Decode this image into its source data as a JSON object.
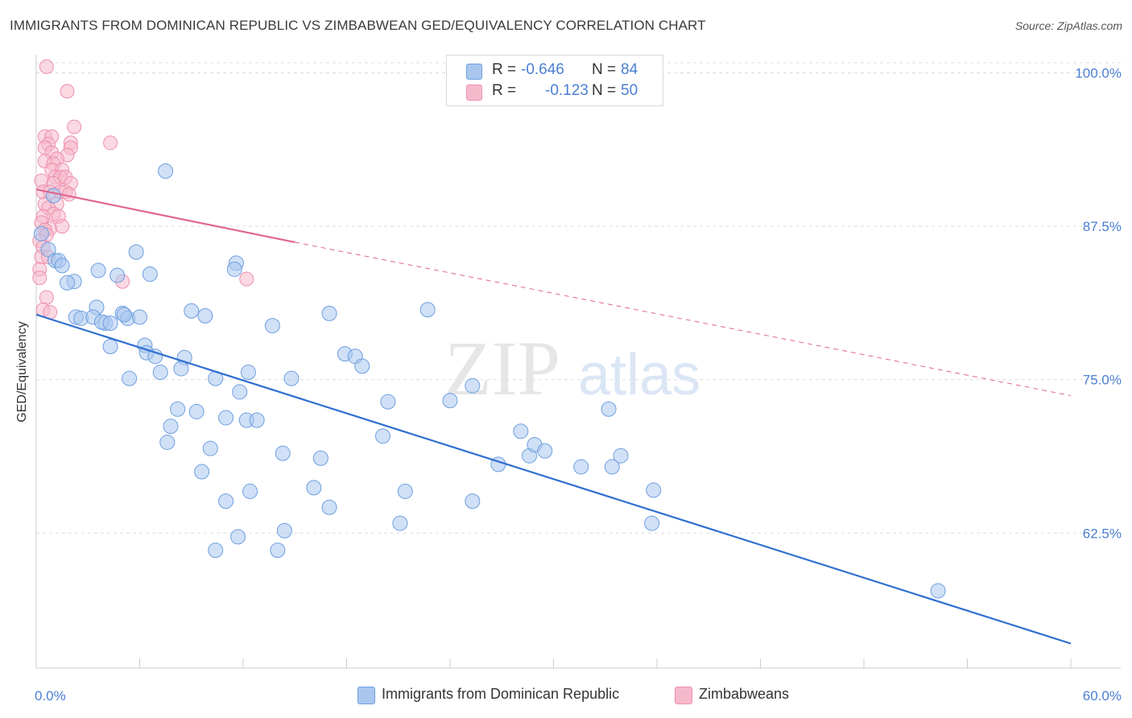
{
  "header": {
    "title": "IMMIGRANTS FROM DOMINICAN REPUBLIC VS ZIMBABWEAN GED/EQUIVALENCY CORRELATION CHART",
    "source": "Source: ZipAtlas.com"
  },
  "watermark": {
    "zip": "ZIP",
    "atlas": "atlas"
  },
  "legend": {
    "rows": [
      {
        "r_label": "R =",
        "r_value": "-0.646",
        "n_label": "N =",
        "n_value": "84"
      },
      {
        "r_label": "R =",
        "r_value": "-0.123",
        "n_label": "N =",
        "n_value": "50"
      }
    ]
  },
  "bottom_legend": {
    "series1": "Immigrants from Dominican Republic",
    "series2": "Zimbabweans"
  },
  "colors": {
    "blue_fill": "#a9c7ee",
    "blue_stroke": "#6e9fe0",
    "blue_line": "#2f6fd0",
    "pink_fill": "#f6b9cc",
    "pink_stroke": "#ee8fae",
    "pink_line": "#e06690",
    "axis_label": "#4a7fd4",
    "grid": "#dddddd"
  },
  "chart_data": {
    "type": "scatter",
    "ylabel": "GED/Equivalency",
    "xlabel": "",
    "xlim": [
      0,
      60
    ],
    "ylim": [
      51.5,
      102
    ],
    "x_tick_labels": [
      "0.0%",
      "60.0%"
    ],
    "y_ticks": [
      62.5,
      75.0,
      87.5,
      100.0
    ],
    "y_tick_labels": [
      "62.5%",
      "75.0%",
      "87.5%",
      "100.0%"
    ],
    "grid": true,
    "series": [
      {
        "name": "Immigrants from Dominican Republic",
        "color": "#a9c7ee",
        "points": [
          [
            1.0,
            90.0
          ],
          [
            0.3,
            86.9
          ],
          [
            0.7,
            85.6
          ],
          [
            1.1,
            84.7
          ],
          [
            1.3,
            84.7
          ],
          [
            1.5,
            84.3
          ],
          [
            2.2,
            83.0
          ],
          [
            1.8,
            82.9
          ],
          [
            3.6,
            83.9
          ],
          [
            4.7,
            83.5
          ],
          [
            5.8,
            85.4
          ],
          [
            6.6,
            83.6
          ],
          [
            11.6,
            84.5
          ],
          [
            11.5,
            84.0
          ],
          [
            7.5,
            92.0
          ],
          [
            2.3,
            80.1
          ],
          [
            2.6,
            80.0
          ],
          [
            3.5,
            80.9
          ],
          [
            3.3,
            80.1
          ],
          [
            4.0,
            79.6
          ],
          [
            3.8,
            79.7
          ],
          [
            4.3,
            79.6
          ],
          [
            5.0,
            80.4
          ],
          [
            5.3,
            80.0
          ],
          [
            5.1,
            80.3
          ],
          [
            6.0,
            80.1
          ],
          [
            9.0,
            80.6
          ],
          [
            9.8,
            80.2
          ],
          [
            13.7,
            79.4
          ],
          [
            17.0,
            80.4
          ],
          [
            22.7,
            80.7
          ],
          [
            4.3,
            77.7
          ],
          [
            6.3,
            77.8
          ],
          [
            6.4,
            77.2
          ],
          [
            6.9,
            76.9
          ],
          [
            8.6,
            76.8
          ],
          [
            8.4,
            75.9
          ],
          [
            7.2,
            75.6
          ],
          [
            5.4,
            75.1
          ],
          [
            10.4,
            75.1
          ],
          [
            12.3,
            75.6
          ],
          [
            14.8,
            75.1
          ],
          [
            17.9,
            77.1
          ],
          [
            18.5,
            76.9
          ],
          [
            18.9,
            76.1
          ],
          [
            11.8,
            74.0
          ],
          [
            8.2,
            72.6
          ],
          [
            9.3,
            72.4
          ],
          [
            11.0,
            71.9
          ],
          [
            12.2,
            71.7
          ],
          [
            12.8,
            71.7
          ],
          [
            20.4,
            73.2
          ],
          [
            24.0,
            73.3
          ],
          [
            25.3,
            74.5
          ],
          [
            33.2,
            72.6
          ],
          [
            7.8,
            71.2
          ],
          [
            7.6,
            69.9
          ],
          [
            10.1,
            69.4
          ],
          [
            14.3,
            69.0
          ],
          [
            16.5,
            68.6
          ],
          [
            20.1,
            70.4
          ],
          [
            26.8,
            68.1
          ],
          [
            28.6,
            68.8
          ],
          [
            28.1,
            70.8
          ],
          [
            28.9,
            69.7
          ],
          [
            29.5,
            69.2
          ],
          [
            31.6,
            67.9
          ],
          [
            33.4,
            67.9
          ],
          [
            33.9,
            68.8
          ],
          [
            9.6,
            67.5
          ],
          [
            11.0,
            65.1
          ],
          [
            12.4,
            65.9
          ],
          [
            16.1,
            66.2
          ],
          [
            17.0,
            64.6
          ],
          [
            21.4,
            65.9
          ],
          [
            25.3,
            65.1
          ],
          [
            35.8,
            66.0
          ],
          [
            11.7,
            62.2
          ],
          [
            14.4,
            62.7
          ],
          [
            10.4,
            61.1
          ],
          [
            14.0,
            61.1
          ],
          [
            21.1,
            63.3
          ],
          [
            35.7,
            63.3
          ],
          [
            52.3,
            57.8
          ]
        ],
        "trend": {
          "x": [
            0,
            60
          ],
          "y": [
            80.3,
            53.5
          ]
        }
      },
      {
        "name": "Zimbabweans",
        "color": "#f6b9cc",
        "points": [
          [
            0.6,
            100.5
          ],
          [
            1.8,
            98.5
          ],
          [
            2.2,
            95.6
          ],
          [
            0.5,
            94.8
          ],
          [
            0.9,
            94.8
          ],
          [
            2.0,
            94.3
          ],
          [
            4.3,
            94.3
          ],
          [
            0.7,
            94.2
          ],
          [
            0.5,
            93.9
          ],
          [
            2.0,
            93.9
          ],
          [
            0.9,
            93.5
          ],
          [
            1.8,
            93.3
          ],
          [
            1.2,
            93.0
          ],
          [
            0.5,
            92.8
          ],
          [
            1.0,
            92.6
          ],
          [
            0.9,
            92.1
          ],
          [
            1.5,
            92.1
          ],
          [
            1.1,
            91.5
          ],
          [
            1.4,
            91.5
          ],
          [
            1.7,
            91.5
          ],
          [
            0.3,
            91.2
          ],
          [
            1.0,
            91.0
          ],
          [
            2.0,
            91.0
          ],
          [
            0.4,
            90.3
          ],
          [
            0.8,
            90.3
          ],
          [
            1.4,
            90.3
          ],
          [
            1.7,
            90.3
          ],
          [
            1.9,
            90.1
          ],
          [
            0.5,
            89.3
          ],
          [
            1.2,
            89.3
          ],
          [
            0.7,
            89.0
          ],
          [
            1.0,
            88.5
          ],
          [
            0.4,
            88.3
          ],
          [
            0.3,
            87.8
          ],
          [
            0.8,
            87.3
          ],
          [
            1.3,
            88.3
          ],
          [
            1.5,
            87.5
          ],
          [
            0.5,
            87.2
          ],
          [
            0.6,
            86.8
          ],
          [
            0.2,
            86.3
          ],
          [
            0.4,
            85.8
          ],
          [
            0.3,
            85.0
          ],
          [
            0.7,
            85.0
          ],
          [
            0.2,
            84.0
          ],
          [
            0.2,
            83.3
          ],
          [
            5.0,
            83.0
          ],
          [
            12.2,
            83.2
          ],
          [
            0.6,
            81.7
          ],
          [
            0.4,
            80.7
          ],
          [
            0.8,
            80.5
          ]
        ],
        "trend": {
          "x": [
            0,
            15
          ],
          "y": [
            90.5,
            86.2
          ],
          "dashed_to": {
            "x": 60,
            "y": 73.7
          }
        }
      }
    ]
  }
}
